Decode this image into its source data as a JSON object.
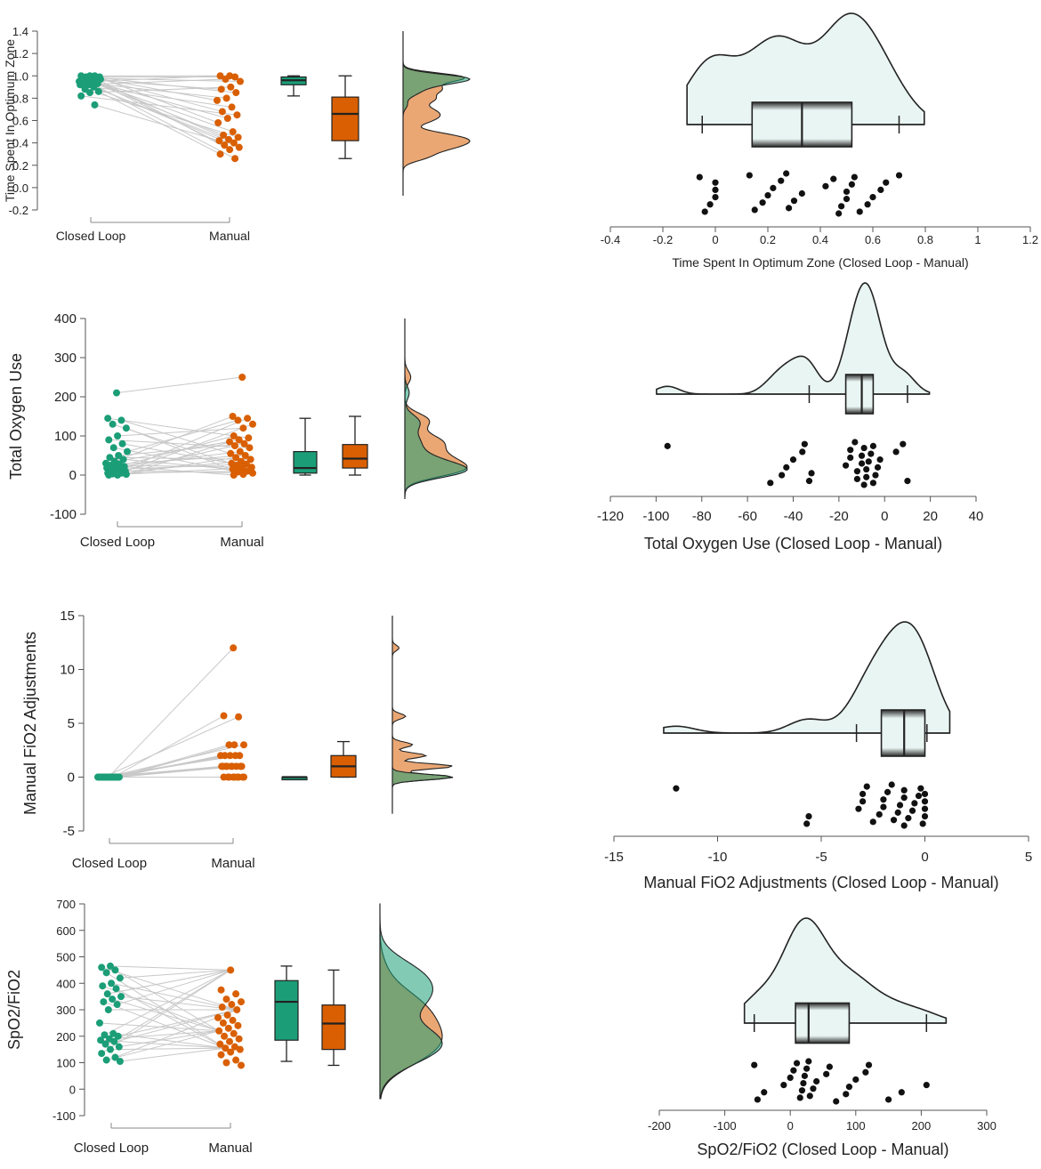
{
  "colors": {
    "closed_loop": "#1b9e77",
    "manual": "#d95f02",
    "pair_line": "#c8c8c8",
    "axis": "#555555",
    "diff_fill": "#e9f5f2"
  },
  "chart_data": [
    {
      "type": "paired-raincloud",
      "ylabel": "Time Spent In Optimum  Zone",
      "groups": [
        "Closed Loop",
        "Manual"
      ],
      "ylim": [
        -0.2,
        1.4
      ],
      "yticks": [
        -0.2,
        0.0,
        0.2,
        0.4,
        0.6,
        0.8,
        1.0,
        1.2,
        1.4
      ],
      "ytick_labels": [
        "-0.2",
        "0.0",
        "0.2",
        "0.4",
        "0.6",
        "0.8",
        "1.0",
        "1.2",
        "1.4"
      ],
      "closed_loop": [
        1.0,
        1.0,
        1.0,
        0.99,
        0.99,
        0.99,
        0.98,
        0.98,
        0.98,
        0.97,
        0.97,
        0.97,
        0.96,
        0.96,
        0.95,
        0.95,
        0.94,
        0.93,
        0.92,
        0.92,
        0.9,
        0.88,
        0.86,
        0.85,
        0.82,
        0.74
      ],
      "manual": [
        1.0,
        1.0,
        0.99,
        0.97,
        0.95,
        0.9,
        0.88,
        0.85,
        0.8,
        0.78,
        0.72,
        0.68,
        0.65,
        0.62,
        0.58,
        0.5,
        0.47,
        0.45,
        0.43,
        0.42,
        0.4,
        0.38,
        0.36,
        0.34,
        0.3,
        0.26
      ],
      "box_closed_loop": {
        "min": 0.82,
        "q1": 0.92,
        "median": 0.96,
        "q3": 0.99,
        "max": 1.0
      },
      "box_manual": {
        "min": 0.26,
        "q1": 0.42,
        "median": 0.66,
        "q3": 0.81,
        "max": 1.0
      },
      "difference": {
        "xlabel": "Time Spent In Optimum  Zone (Closed Loop - Manual)",
        "xlim": [
          -0.4,
          1.2
        ],
        "xticks": [
          -0.4,
          -0.2,
          0,
          0.2,
          0.4,
          0.6,
          0.8,
          1,
          1.2
        ],
        "xtick_labels": [
          "-0.4",
          "-0.2",
          "0",
          "0.2",
          "0.4",
          "0.6",
          "0.8",
          "1",
          "1.2"
        ],
        "box": {
          "min": -0.05,
          "q1": 0.14,
          "median": 0.33,
          "q3": 0.52,
          "max": 0.7
        },
        "values": [
          -0.06,
          -0.04,
          -0.02,
          0.0,
          0.0,
          0.0,
          0.13,
          0.15,
          0.18,
          0.2,
          0.22,
          0.25,
          0.27,
          0.28,
          0.3,
          0.33,
          0.42,
          0.45,
          0.47,
          0.48,
          0.5,
          0.5,
          0.52,
          0.53,
          0.55,
          0.58,
          0.6,
          0.63,
          0.65,
          0.7
        ]
      }
    },
    {
      "type": "paired-raincloud",
      "ylabel": "Total Oxygen Use",
      "groups": [
        "Closed Loop",
        "Manual"
      ],
      "ylim": [
        -100,
        400
      ],
      "yticks": [
        -100,
        0,
        100,
        200,
        300,
        400
      ],
      "ytick_labels": [
        "-100",
        "0",
        "100",
        "200",
        "300",
        "400"
      ],
      "closed_loop": [
        0,
        0,
        2,
        3,
        5,
        5,
        8,
        10,
        12,
        15,
        18,
        20,
        22,
        25,
        28,
        30,
        35,
        40,
        45,
        50,
        60,
        70,
        80,
        90,
        100,
        120,
        130,
        140,
        145,
        210
      ],
      "manual": [
        0,
        2,
        5,
        8,
        10,
        15,
        18,
        20,
        25,
        28,
        30,
        35,
        40,
        45,
        50,
        55,
        60,
        70,
        75,
        80,
        85,
        90,
        95,
        100,
        120,
        130,
        140,
        145,
        150,
        250
      ],
      "box_closed_loop": {
        "min": 0,
        "q1": 5,
        "median": 18,
        "q3": 60,
        "max": 145
      },
      "box_manual": {
        "min": 0,
        "q1": 18,
        "median": 42,
        "q3": 78,
        "max": 150
      },
      "difference": {
        "xlabel": "Total Oxygen Use (Closed Loop - Manual)",
        "xlim": [
          -120,
          40
        ],
        "xticks": [
          -120,
          -100,
          -80,
          -60,
          -40,
          -20,
          0,
          20,
          40
        ],
        "xtick_labels": [
          "-120",
          "-100",
          "-80",
          "-60",
          "-40",
          "-20",
          "0",
          "20",
          "40"
        ],
        "box": {
          "min": -33,
          "q1": -17,
          "median": -10,
          "q3": -5,
          "max": 10
        },
        "values": [
          -95,
          -50,
          -45,
          -43,
          -40,
          -36,
          -35,
          -33,
          -32,
          -17,
          -15,
          -15,
          -13,
          -12,
          -12,
          -10,
          -10,
          -9,
          -9,
          -8,
          -8,
          -7,
          -6,
          -5,
          -5,
          -4,
          -3,
          -2,
          5,
          8,
          10
        ]
      }
    },
    {
      "type": "paired-raincloud",
      "ylabel": "Manual FiO2 Adjustments",
      "groups": [
        "Closed Loop",
        "Manual"
      ],
      "ylim": [
        -5,
        15
      ],
      "yticks": [
        -5,
        0,
        5,
        10,
        15
      ],
      "ytick_labels": [
        "-5",
        "0",
        "5",
        "10",
        "15"
      ],
      "closed_loop": [
        0,
        0,
        0,
        0,
        0,
        0,
        0,
        0,
        0,
        0,
        0,
        0,
        0,
        0,
        0,
        0,
        0,
        0,
        0,
        0,
        0,
        0,
        0,
        0,
        0,
        0,
        0,
        0,
        0,
        0
      ],
      "manual": [
        0,
        0,
        0,
        0,
        0,
        0,
        0,
        0,
        0,
        1,
        1,
        1,
        1,
        1,
        1,
        1,
        1,
        1,
        2,
        2,
        2,
        2,
        2,
        3,
        3,
        3,
        5.6,
        5.7,
        12
      ],
      "box_closed_loop": {
        "min": 0,
        "q1": 0,
        "median": 0,
        "q3": 0,
        "max": 0
      },
      "box_manual": {
        "min": 0,
        "q1": 0,
        "median": 1,
        "q3": 2,
        "max": 3.3
      },
      "difference": {
        "xlabel": "Manual FiO2 Adjustments (Closed Loop - Manual)",
        "xlim": [
          -15,
          5
        ],
        "xticks": [
          -15,
          -10,
          -5,
          0,
          5
        ],
        "xtick_labels": [
          "-15",
          "-10",
          "-5",
          "0",
          "5"
        ],
        "box": {
          "min": -3.3,
          "q1": -2.1,
          "median": -1.0,
          "q3": 0,
          "max": 0.1
        },
        "values": [
          -12,
          -5.7,
          -5.6,
          -3.2,
          -3,
          -3,
          -2.8,
          -2.5,
          -2.2,
          -2,
          -2,
          -1.8,
          -1.6,
          -1.5,
          -1.3,
          -1.2,
          -1,
          -1,
          -1,
          -0.8,
          -0.6,
          -0.5,
          -0.3,
          -0.2,
          -0.1,
          0,
          0,
          0,
          0
        ]
      }
    },
    {
      "type": "paired-raincloud",
      "ylabel": "SpO2/FiO2",
      "groups": [
        "Closed Loop",
        "Manual"
      ],
      "ylim": [
        -100,
        700
      ],
      "yticks": [
        -100,
        0,
        100,
        200,
        300,
        400,
        500,
        600,
        700
      ],
      "ytick_labels": [
        "-100",
        "0",
        "100",
        "200",
        "300",
        "400",
        "500",
        "600",
        "700"
      ],
      "closed_loop": [
        105,
        110,
        120,
        135,
        150,
        160,
        170,
        180,
        185,
        190,
        200,
        205,
        210,
        250,
        300,
        320,
        330,
        340,
        350,
        360,
        380,
        390,
        400,
        420,
        440,
        450,
        460,
        465
      ],
      "manual": [
        90,
        100,
        110,
        130,
        140,
        150,
        155,
        160,
        170,
        180,
        190,
        200,
        210,
        220,
        230,
        240,
        250,
        260,
        270,
        280,
        300,
        310,
        320,
        330,
        340,
        360,
        375,
        450
      ],
      "box_closed_loop": {
        "min": 105,
        "q1": 185,
        "median": 330,
        "q3": 410,
        "max": 465
      },
      "box_manual": {
        "min": 90,
        "q1": 150,
        "median": 248,
        "q3": 318,
        "max": 450
      },
      "difference": {
        "xlabel": "SpO2/FiO2 (Closed Loop - Manual)",
        "xlim": [
          -200,
          300
        ],
        "xticks": [
          -200,
          -100,
          0,
          100,
          200,
          300
        ],
        "xtick_labels": [
          "-200",
          "-100",
          "0",
          "100",
          "200",
          "300"
        ],
        "box": {
          "min": -55,
          "q1": 8,
          "median": 28,
          "q3": 90,
          "max": 208
        },
        "values": [
          -55,
          -50,
          -40,
          -10,
          0,
          5,
          10,
          15,
          18,
          20,
          22,
          25,
          28,
          30,
          35,
          40,
          55,
          60,
          70,
          85,
          90,
          100,
          115,
          120,
          150,
          170,
          208
        ]
      }
    }
  ]
}
